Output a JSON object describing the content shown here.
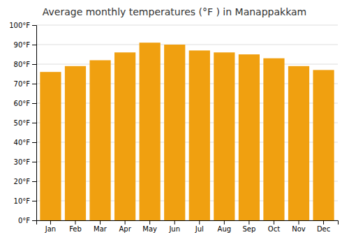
{
  "chart_data": {
    "type": "bar",
    "title": "Average monthly temperatures (°F ) in Manappakkam",
    "categories": [
      "Jan",
      "Feb",
      "Mar",
      "Apr",
      "May",
      "Jun",
      "Jul",
      "Aug",
      "Sep",
      "Oct",
      "Nov",
      "Dec"
    ],
    "values": [
      76,
      79,
      82,
      86,
      91,
      90,
      87,
      86,
      85,
      83,
      79,
      77
    ],
    "color": "#F0A010",
    "ylim": [
      0,
      100
    ],
    "yticks": [
      {
        "value": 0,
        "label": "0°F"
      },
      {
        "value": 10,
        "label": "10°F"
      },
      {
        "value": 20,
        "label": "20°F"
      },
      {
        "value": 30,
        "label": "30°F"
      },
      {
        "value": 40,
        "label": "40°F"
      },
      {
        "value": 50,
        "label": "50°F"
      },
      {
        "value": 60,
        "label": "60°F"
      },
      {
        "value": 70,
        "label": "70°F"
      },
      {
        "value": 80,
        "label": "80°F"
      },
      {
        "value": 90,
        "label": "90°F"
      },
      {
        "value": 100,
        "label": "100°F"
      }
    ],
    "grid": true
  }
}
